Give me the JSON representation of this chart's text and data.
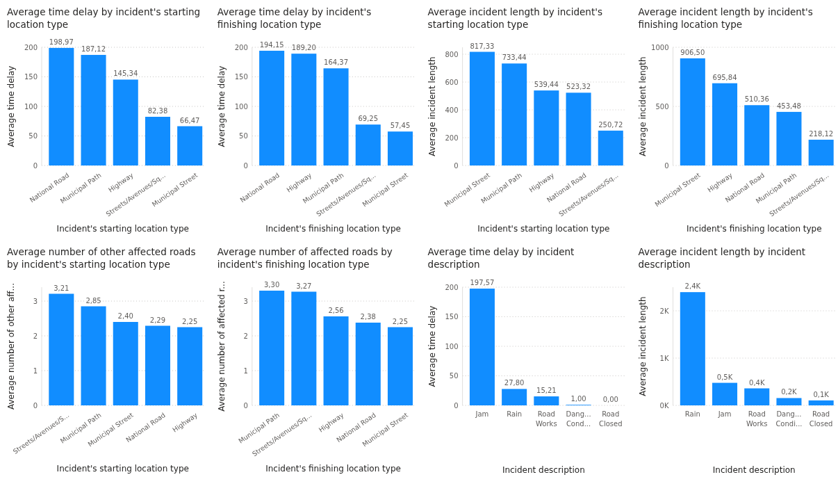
{
  "chart_data": [
    {
      "type": "bar",
      "title": "Average time delay by incident's starting location type",
      "xlabel": "Incident's starting location type",
      "ylabel": "Average time delay",
      "categories": [
        "National Road",
        "Municipal Path",
        "Highway",
        "Streets/Avenues/Sq...",
        "Municipal Street"
      ],
      "values": [
        198.97,
        187.12,
        145.34,
        82.38,
        66.47
      ],
      "value_labels": [
        "198,97",
        "187,12",
        "145,34",
        "82,38",
        "66,47"
      ],
      "color": "#118dff",
      "ylim": [
        0,
        200
      ],
      "yticks": [
        0,
        50,
        100,
        150,
        200
      ],
      "grid": "y"
    },
    {
      "type": "bar",
      "title": "Average time delay by incident's finishing location type",
      "xlabel": "Incident's finishing location type",
      "ylabel": "Average time delay",
      "categories": [
        "National Road",
        "Highway",
        "Municipal Path",
        "Streets/Avenues/Sq...",
        "Municipal Street"
      ],
      "values": [
        194.15,
        189.2,
        164.37,
        69.25,
        57.45
      ],
      "value_labels": [
        "194,15",
        "189,20",
        "164,37",
        "69,25",
        "57,45"
      ],
      "color": "#118dff",
      "ylim": [
        0,
        200
      ],
      "yticks": [
        0,
        50,
        100,
        150,
        200
      ],
      "grid": "y"
    },
    {
      "type": "bar",
      "title": "Average incident length by incident's starting location type",
      "xlabel": "Incident's starting location type",
      "ylabel": "Average incident length",
      "categories": [
        "Municipal Street",
        "Municipal Path",
        "Highway",
        "National Road",
        "Streets/Avenues/Sq..."
      ],
      "values": [
        817.33,
        733.44,
        539.44,
        523.32,
        250.72
      ],
      "value_labels": [
        "817,33",
        "733,44",
        "539,44",
        "523,32",
        "250,72"
      ],
      "color": "#118dff",
      "ylim": [
        0,
        850
      ],
      "yticks": [
        0,
        200,
        400,
        600,
        800
      ],
      "grid": "y"
    },
    {
      "type": "bar",
      "title": "Average incident length by incident's finishing location type",
      "xlabel": "Incident's finishing location type",
      "ylabel": "Average incident length",
      "categories": [
        "Municipal Street",
        "Highway",
        "National Road",
        "Municipal Path",
        "Streets/Avenues/Sq..."
      ],
      "values": [
        906.5,
        695.84,
        510.36,
        453.48,
        218.12
      ],
      "value_labels": [
        "906,50",
        "695,84",
        "510,36",
        "453,48",
        "218,12"
      ],
      "color": "#118dff",
      "ylim": [
        0,
        1000
      ],
      "yticks": [
        0,
        500,
        1000
      ],
      "grid": "y"
    },
    {
      "type": "bar",
      "title": "Average number of other affected roads by incident's starting location type",
      "xlabel": "Incident's starting location type",
      "ylabel": "Average number of other aff...",
      "categories": [
        "Streets/Avenues/S...",
        "Municipal Path",
        "Municipal Street",
        "National Road",
        "Highway"
      ],
      "values": [
        3.21,
        2.85,
        2.4,
        2.29,
        2.25
      ],
      "value_labels": [
        "3,21",
        "2,85",
        "2,40",
        "2,29",
        "2,25"
      ],
      "color": "#118dff",
      "ylim": [
        0,
        3.4
      ],
      "yticks": [
        0,
        1,
        2,
        3
      ],
      "grid": "y"
    },
    {
      "type": "bar",
      "title": "Average number of affected roads by incident's finishing location type",
      "xlabel": "Incident's finishing location type",
      "ylabel": "Average number of affected r...",
      "categories": [
        "Municipal Path",
        "Streets/Avenues/Sq...",
        "Highway",
        "National Road",
        "Municipal Street"
      ],
      "values": [
        3.3,
        3.27,
        2.56,
        2.38,
        2.25
      ],
      "value_labels": [
        "3,30",
        "3,27",
        "2,56",
        "2,38",
        "2,25"
      ],
      "color": "#118dff",
      "ylim": [
        0,
        3.4
      ],
      "yticks": [
        0,
        1,
        2,
        3
      ],
      "grid": "y"
    },
    {
      "type": "bar",
      "title": "Average time delay by incident description",
      "xlabel": "Incident description",
      "ylabel": "Average time delay",
      "categories": [
        "Jam",
        "Rain",
        "Road Works",
        "Dang... Cond...",
        "Road Closed"
      ],
      "values": [
        197.57,
        27.8,
        15.21,
        1.0,
        0.0
      ],
      "value_labels": [
        "197,57",
        "27,80",
        "15,21",
        "1,00",
        "0,00"
      ],
      "color": "#118dff",
      "ylim": [
        0,
        200
      ],
      "yticks": [
        0,
        50,
        100,
        150,
        200
      ],
      "grid": "y"
    },
    {
      "type": "bar",
      "title": "Average incident length by incident description",
      "xlabel": "Incident description",
      "ylabel": "Average incident length",
      "categories": [
        "Rain",
        "Jam",
        "Road Works",
        "Dang... Condi...",
        "Road Closed"
      ],
      "values": [
        2395,
        477,
        360,
        155,
        105
      ],
      "value_labels": [
        "2,4K",
        "0,5K",
        "0,4K",
        "0,2K",
        "0,1K"
      ],
      "color": "#118dff",
      "ylim": [
        0,
        2500
      ],
      "yticks": [
        {
          "value": 0,
          "label": "0K"
        },
        {
          "value": 1000,
          "label": "1K"
        },
        {
          "value": 2000,
          "label": "2K"
        }
      ],
      "grid": "y"
    }
  ]
}
